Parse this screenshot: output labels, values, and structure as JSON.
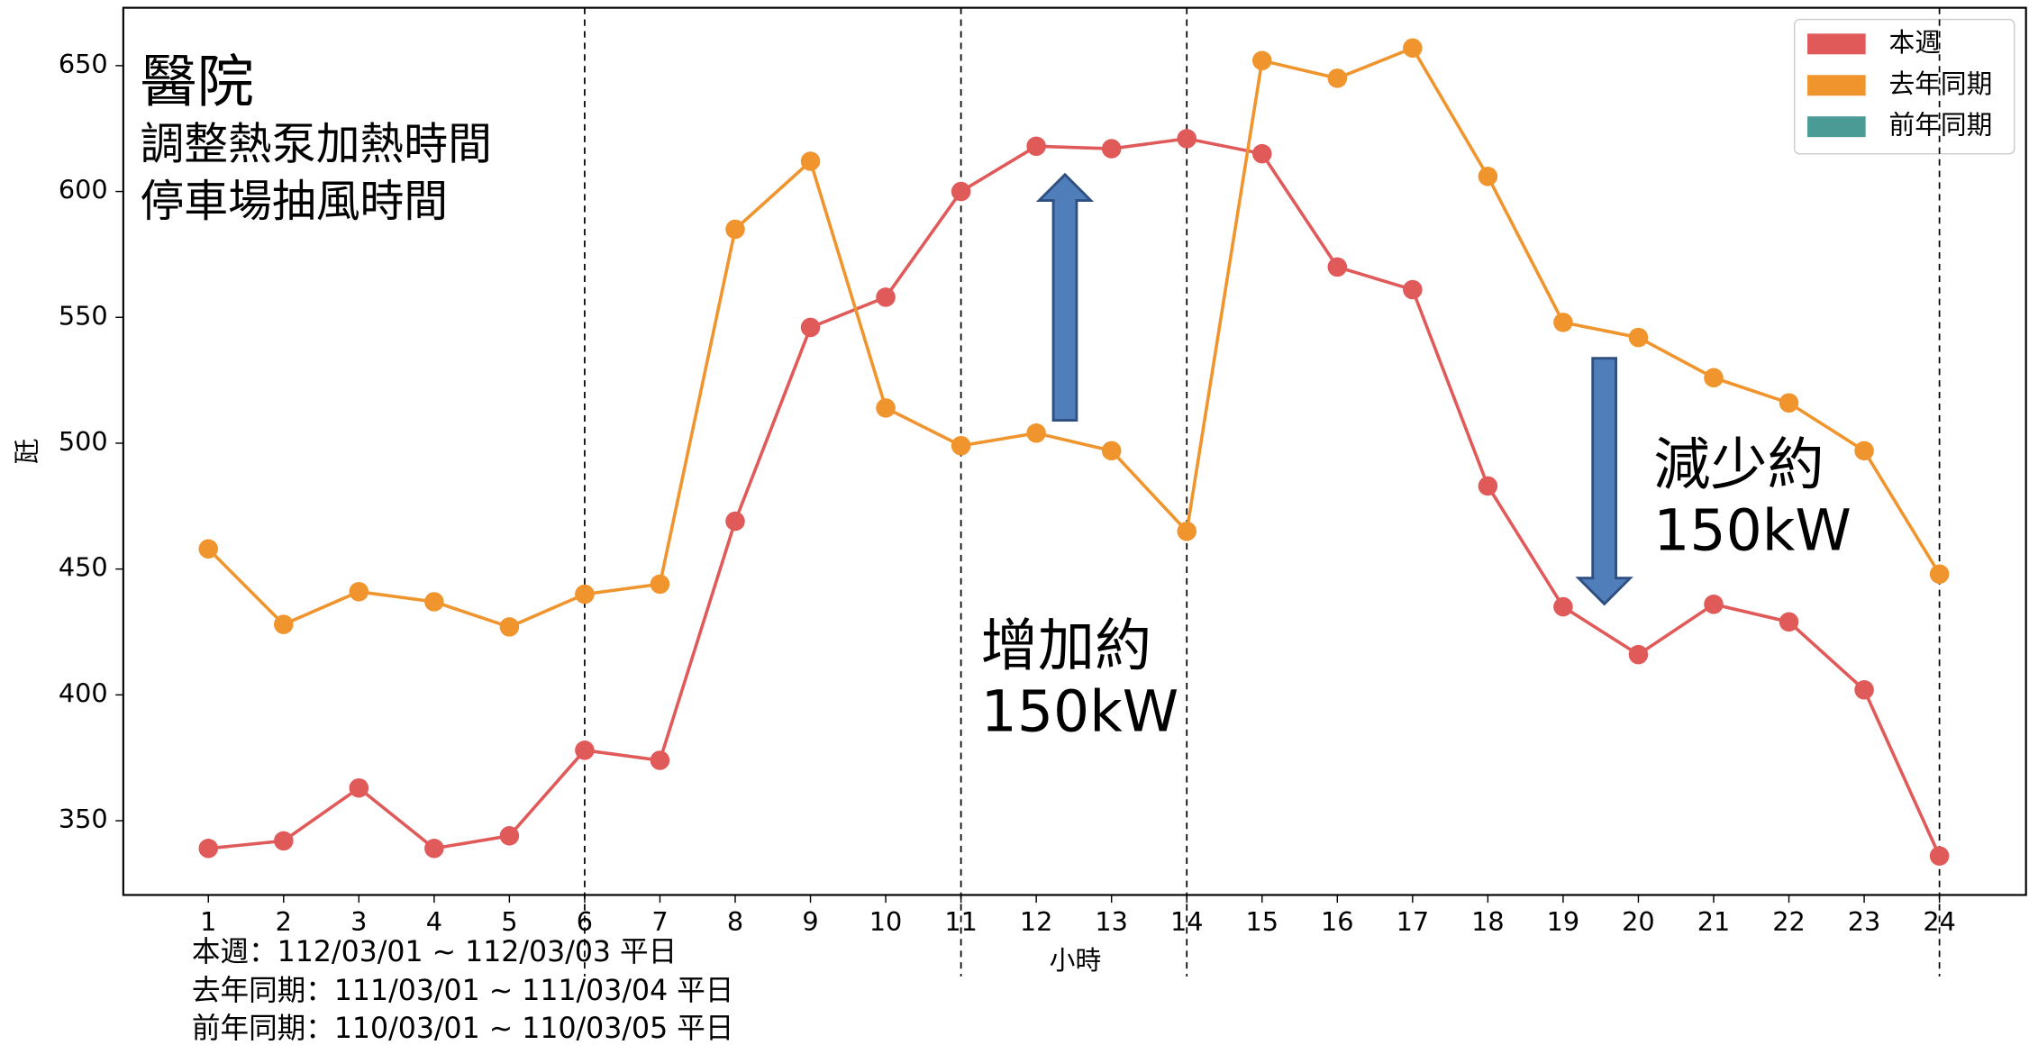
{
  "chart_data": {
    "type": "line",
    "x": [
      1,
      2,
      3,
      4,
      5,
      6,
      7,
      8,
      9,
      10,
      11,
      12,
      13,
      14,
      15,
      16,
      17,
      18,
      19,
      20,
      21,
      22,
      23,
      24
    ],
    "series": [
      {
        "name": "本週",
        "color": "#e05a5a",
        "values": [
          339,
          342,
          363,
          339,
          344,
          378,
          374,
          469,
          546,
          558,
          600,
          618,
          617,
          621,
          615,
          570,
          561,
          483,
          435,
          416,
          436,
          429,
          402,
          336
        ]
      },
      {
        "name": "去年同期",
        "color": "#f0952e",
        "values": [
          458,
          428,
          441,
          437,
          427,
          440,
          444,
          585,
          612,
          514,
          499,
          504,
          497,
          465,
          652,
          645,
          657,
          606,
          548,
          542,
          526,
          516,
          497,
          448
        ]
      },
      {
        "name": "前年同期",
        "color": "#4a9a96",
        "values": [
          null,
          null,
          null,
          null,
          null,
          null,
          null,
          null,
          null,
          null,
          null,
          null,
          null,
          null,
          null,
          null,
          null,
          null,
          null,
          null,
          null,
          null,
          null,
          null
        ]
      }
    ],
    "xlim": [
      -0.13,
      25.15
    ],
    "ylim": [
      320.5,
      673
    ],
    "xticks": [
      1,
      2,
      3,
      4,
      5,
      6,
      7,
      8,
      9,
      10,
      11,
      12,
      13,
      14,
      15,
      16,
      17,
      18,
      19,
      20,
      21,
      22,
      23,
      24
    ],
    "yticks": [
      350,
      400,
      450,
      500,
      550,
      600,
      650
    ],
    "vlines": [
      6,
      11,
      14,
      24
    ],
    "xlabel": "小時",
    "ylabel": "瓩",
    "legend": "upper right",
    "annotations": [
      "醫院",
      "調整熱泵加熱時間",
      "停車場抽風時間",
      "增加約",
      "150kW",
      "減少約",
      "150kW"
    ],
    "footnotes": [
      "本週：112/03/01 ~ 112/03/03 平日",
      "去年同期：111/03/01 ~ 111/03/04 平日",
      "前年同期：110/03/01 ~ 110/03/05 平日"
    ]
  }
}
